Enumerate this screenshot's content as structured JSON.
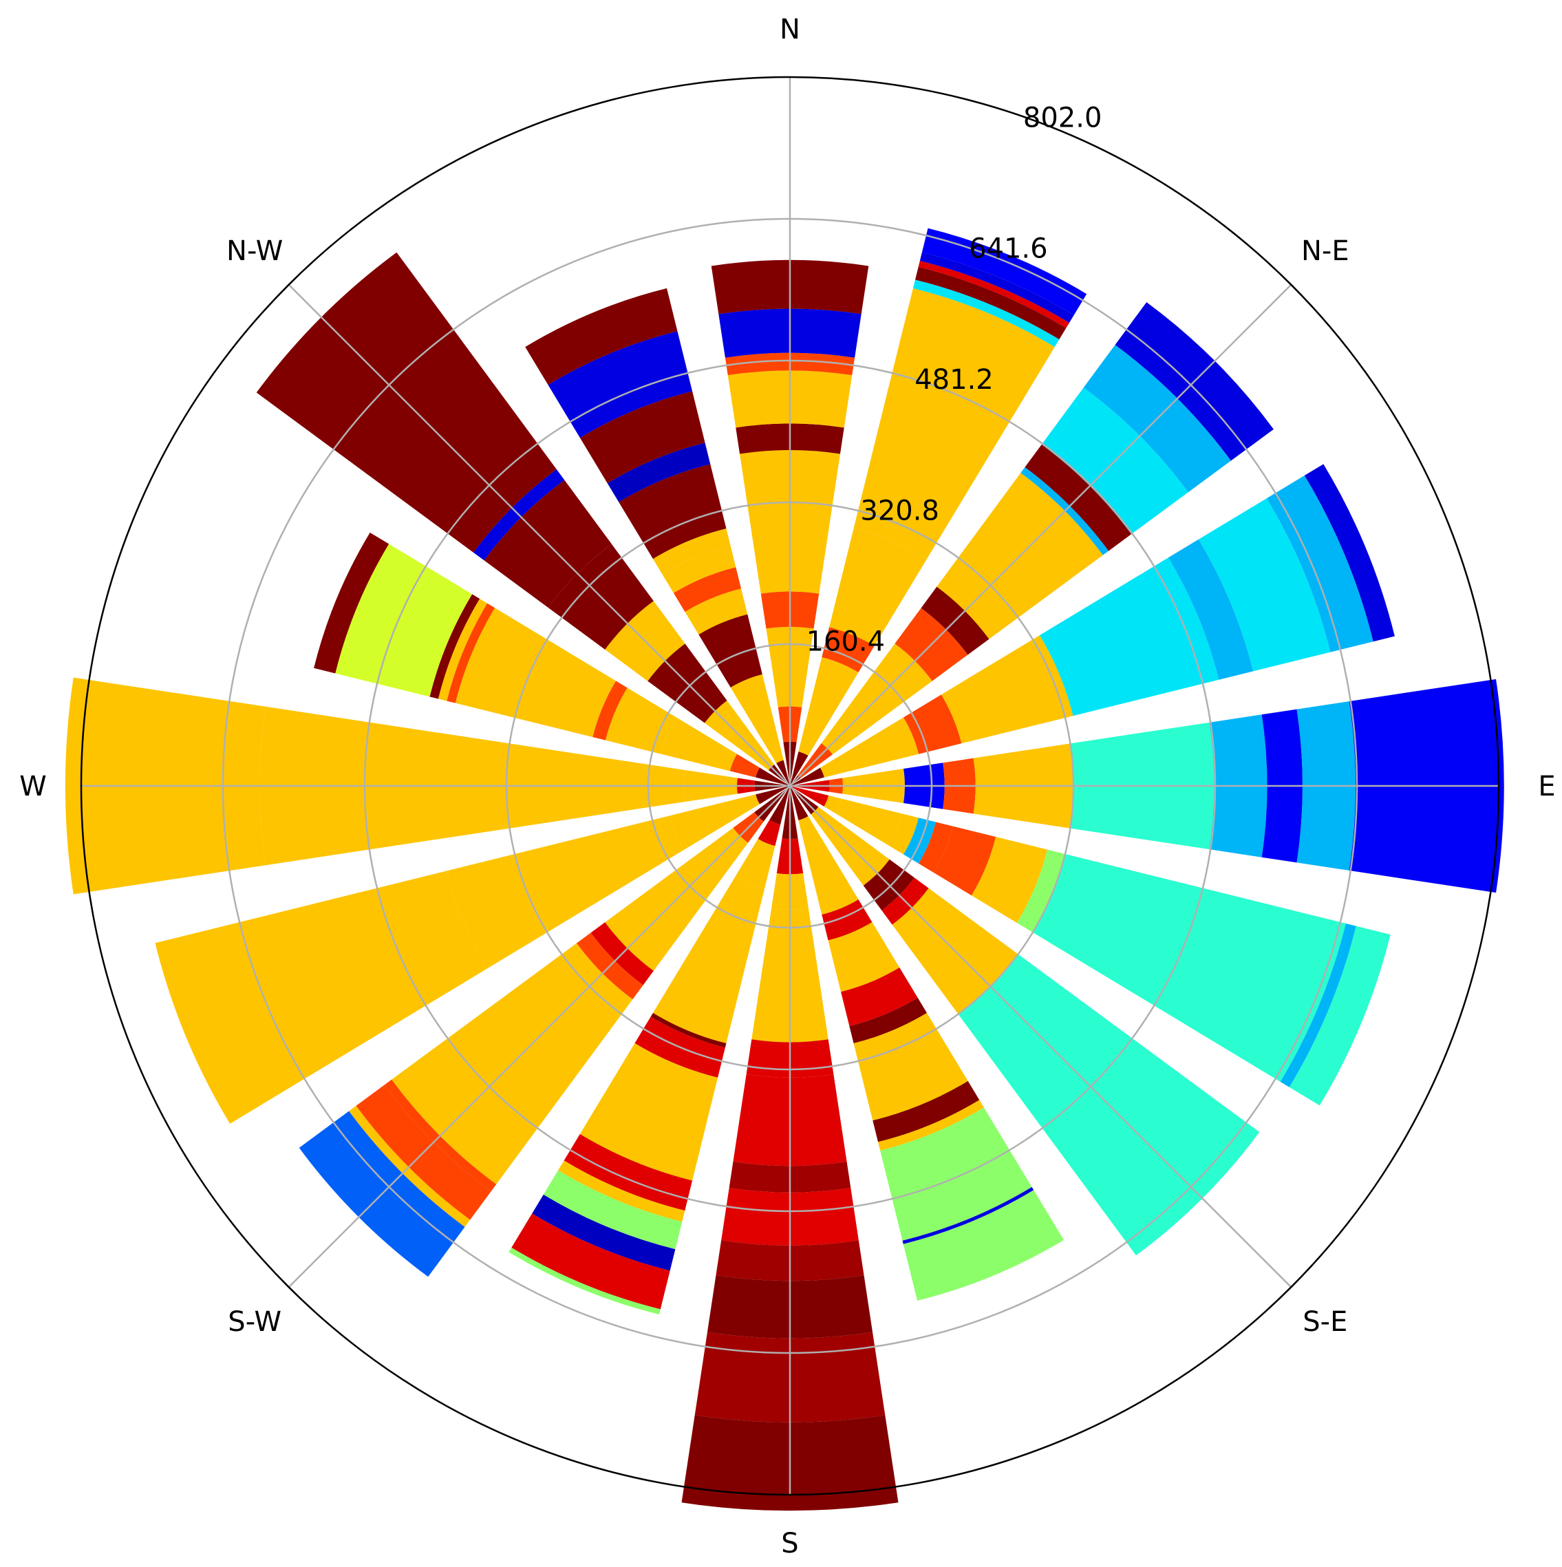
{
  "chart_data": {
    "type": "windrose",
    "directions": [
      "N",
      "NNE",
      "NE",
      "ENE",
      "E",
      "ESE",
      "SE",
      "SSE",
      "S",
      "SSW",
      "SW",
      "WSW",
      "W",
      "WNW",
      "NW",
      "NNW"
    ],
    "compass_labels": [
      "N",
      "N-E",
      "E",
      "S-E",
      "S",
      "S-W",
      "W",
      "N-W"
    ],
    "radial_ticks": [
      160.4,
      320.8,
      481.2,
      641.6,
      802.0
    ],
    "radial_tick_labels": [
      "160.4",
      "320.8",
      "481.2",
      "641.6",
      "802.0"
    ],
    "rmax": 802.0,
    "grid": true,
    "bars": [
      [
        [
          0,
          50,
          "#800000"
        ],
        [
          50,
          90,
          "#fe4400"
        ],
        [
          90,
          180,
          "#fec400"
        ],
        [
          180,
          220,
          "#fe4400"
        ],
        [
          220,
          380,
          "#fec400"
        ],
        [
          380,
          410,
          "#800000"
        ],
        [
          410,
          470,
          "#fec400"
        ],
        [
          470,
          490,
          "#fe4400"
        ],
        [
          490,
          540,
          "#0000e0"
        ],
        [
          540,
          595,
          "#800000"
        ]
      ],
      [
        [
          0,
          40,
          "#800000"
        ],
        [
          40,
          150,
          "#fec400"
        ],
        [
          150,
          185,
          "#fe4400"
        ],
        [
          185,
          300,
          "#fec400"
        ],
        [
          300,
          580,
          "#fec400"
        ],
        [
          580,
          590,
          "#00e4f8"
        ],
        [
          590,
          605,
          "#800000"
        ],
        [
          605,
          612,
          "#e00000"
        ],
        [
          612,
          622,
          "#0000e0"
        ],
        [
          622,
          650,
          "#0000f8"
        ]
      ],
      [
        [
          0,
          15,
          "#800000"
        ],
        [
          15,
          60,
          "#fe4400"
        ],
        [
          60,
          200,
          "#fec400"
        ],
        [
          200,
          250,
          "#fe4400"
        ],
        [
          250,
          280,
          "#800000"
        ],
        [
          280,
          440,
          "#fec400"
        ],
        [
          440,
          448,
          "#00b4f8"
        ],
        [
          448,
          480,
          "#800000"
        ],
        [
          480,
          560,
          "#00e4f8"
        ],
        [
          560,
          620,
          "#00b4f8"
        ],
        [
          620,
          680,
          "#0000e0"
        ]
      ],
      [
        [
          0,
          40,
          "#800000"
        ],
        [
          40,
          150,
          "#fec400"
        ],
        [
          150,
          200,
          "#fe4400"
        ],
        [
          200,
          330,
          "#fec400"
        ],
        [
          330,
          500,
          "#00e4f8"
        ],
        [
          500,
          540,
          "#00b4f8"
        ],
        [
          540,
          630,
          "#00e4f8"
        ],
        [
          630,
          680,
          "#00b4f8"
        ],
        [
          680,
          705,
          "#0000e0"
        ]
      ],
      [
        [
          0,
          45,
          "#e00000"
        ],
        [
          45,
          60,
          "#fe4400"
        ],
        [
          60,
          80,
          "#fec400"
        ],
        [
          80,
          130,
          "#fec400"
        ],
        [
          130,
          175,
          "#0000f8"
        ],
        [
          175,
          210,
          "#fe4400"
        ],
        [
          210,
          320,
          "#fec400"
        ],
        [
          320,
          480,
          "#2afed0"
        ],
        [
          480,
          540,
          "#00b4f8"
        ],
        [
          540,
          580,
          "#0000f8"
        ],
        [
          580,
          640,
          "#00b4f8"
        ],
        [
          640,
          808,
          "#0000f8"
        ]
      ],
      [
        [
          0,
          45,
          "#e00000"
        ],
        [
          45,
          60,
          "#fec400"
        ],
        [
          60,
          130,
          "#fec400"
        ],
        [
          130,
          150,
          "#fec400"
        ],
        [
          150,
          170,
          "#00b4f8"
        ],
        [
          170,
          190,
          "#fe4400"
        ],
        [
          190,
          240,
          "#fe4400"
        ],
        [
          240,
          300,
          "#fec400"
        ],
        [
          300,
          320,
          "#8cfe6a"
        ],
        [
          320,
          648,
          "#2afed0"
        ],
        [
          648,
          660,
          "#00b4f8"
        ],
        [
          660,
          700,
          "#2afed0"
        ]
      ],
      [
        [
          0,
          40,
          "#800000"
        ],
        [
          40,
          140,
          "#fec400"
        ],
        [
          140,
          175,
          "#800000"
        ],
        [
          175,
          195,
          "#e00000"
        ],
        [
          195,
          240,
          "#fec400"
        ],
        [
          240,
          320,
          "#fec400"
        ],
        [
          320,
          660,
          "#2afed0"
        ]
      ],
      [
        [
          0,
          40,
          "#800000"
        ],
        [
          40,
          150,
          "#fec400"
        ],
        [
          150,
          180,
          "#e00000"
        ],
        [
          180,
          240,
          "#fec400"
        ],
        [
          240,
          280,
          "#e00000"
        ],
        [
          280,
          300,
          "#800000"
        ],
        [
          300,
          390,
          "#fec400"
        ],
        [
          390,
          415,
          "#800000"
        ],
        [
          415,
          425,
          "#fec400"
        ],
        [
          425,
          530,
          "#8cfe6a"
        ],
        [
          530,
          534,
          "#0000e0"
        ],
        [
          534,
          600,
          "#8cfe6a"
        ]
      ],
      [
        [
          0,
          60,
          "#800000"
        ],
        [
          60,
          100,
          "#e00000"
        ],
        [
          100,
          140,
          "#fec400"
        ],
        [
          140,
          290,
          "#fec400"
        ],
        [
          290,
          330,
          "#e00000"
        ],
        [
          330,
          430,
          "#e00000"
        ],
        [
          430,
          460,
          "#a00000"
        ],
        [
          460,
          520,
          "#e00000"
        ],
        [
          520,
          560,
          "#a00000"
        ],
        [
          560,
          625,
          "#800000"
        ],
        [
          625,
          720,
          "#a00000"
        ],
        [
          720,
          820,
          "#800000"
        ]
      ],
      [
        [
          0,
          45,
          "#800000"
        ],
        [
          45,
          70,
          "#e00000"
        ],
        [
          70,
          120,
          "#fec400"
        ],
        [
          120,
          300,
          "#fec400"
        ],
        [
          300,
          305,
          "#800000"
        ],
        [
          305,
          340,
          "#e00000"
        ],
        [
          340,
          460,
          "#fec400"
        ],
        [
          460,
          495,
          "#e00000"
        ],
        [
          495,
          508,
          "#fec400"
        ],
        [
          508,
          540,
          "#8cfe6a"
        ],
        [
          540,
          565,
          "#0000c0"
        ],
        [
          565,
          610,
          "#e00000"
        ],
        [
          610,
          616,
          "#8cfe6a"
        ]
      ],
      [
        [
          0,
          50,
          "#800000"
        ],
        [
          50,
          80,
          "#fe4400"
        ],
        [
          80,
          150,
          "#fec400"
        ],
        [
          150,
          260,
          "#fec400"
        ],
        [
          260,
          280,
          "#e00000"
        ],
        [
          280,
          300,
          "#fe4400"
        ],
        [
          300,
          560,
          "#fec400"
        ],
        [
          560,
          570,
          "#fe4400"
        ],
        [
          570,
          610,
          "#fe4400"
        ],
        [
          610,
          620,
          "#fec400"
        ],
        [
          620,
          690,
          "#0060f8"
        ]
      ],
      [
        [
          0,
          40,
          "#800000"
        ],
        [
          40,
          140,
          "#fec400"
        ],
        [
          140,
          400,
          "#fec400"
        ],
        [
          400,
          740,
          "#fec400"
        ]
      ],
      [
        [
          0,
          40,
          "#800000"
        ],
        [
          40,
          60,
          "#e00000"
        ],
        [
          60,
          120,
          "#fec400"
        ],
        [
          120,
          600,
          "#fec400"
        ],
        [
          600,
          820,
          "#fec400"
        ]
      ],
      [
        [
          0,
          40,
          "#800000"
        ],
        [
          40,
          70,
          "#fe4400"
        ],
        [
          70,
          150,
          "#fec400"
        ],
        [
          150,
          215,
          "#fec400"
        ],
        [
          215,
          230,
          "#fe4400"
        ],
        [
          230,
          390,
          "#fec400"
        ],
        [
          390,
          400,
          "#fe4400"
        ],
        [
          400,
          410,
          "#fec400"
        ],
        [
          410,
          420,
          "#800000"
        ],
        [
          420,
          530,
          "#d4fe2a"
        ],
        [
          530,
          555,
          "#800000"
        ]
      ],
      [
        [
          0,
          30,
          "#800000"
        ],
        [
          30,
          120,
          "#fec400"
        ],
        [
          120,
          200,
          "#800000"
        ],
        [
          200,
          260,
          "#fec400"
        ],
        [
          260,
          340,
          "#800000"
        ],
        [
          340,
          430,
          "#800000"
        ],
        [
          430,
          445,
          "#0000e0"
        ],
        [
          445,
          750,
          "#800000"
        ]
      ],
      [
        [
          0,
          30,
          "#800000"
        ],
        [
          30,
          130,
          "#fec400"
        ],
        [
          130,
          200,
          "#800000"
        ],
        [
          200,
          230,
          "#fec400"
        ],
        [
          230,
          255,
          "#fe4400"
        ],
        [
          255,
          280,
          "#fec400"
        ],
        [
          280,
          300,
          "#fec400"
        ],
        [
          300,
          375,
          "#800000"
        ],
        [
          375,
          400,
          "#0000c0"
        ],
        [
          400,
          460,
          "#800000"
        ],
        [
          460,
          530,
          "#0000e0"
        ],
        [
          530,
          580,
          "#800000"
        ]
      ]
    ]
  }
}
